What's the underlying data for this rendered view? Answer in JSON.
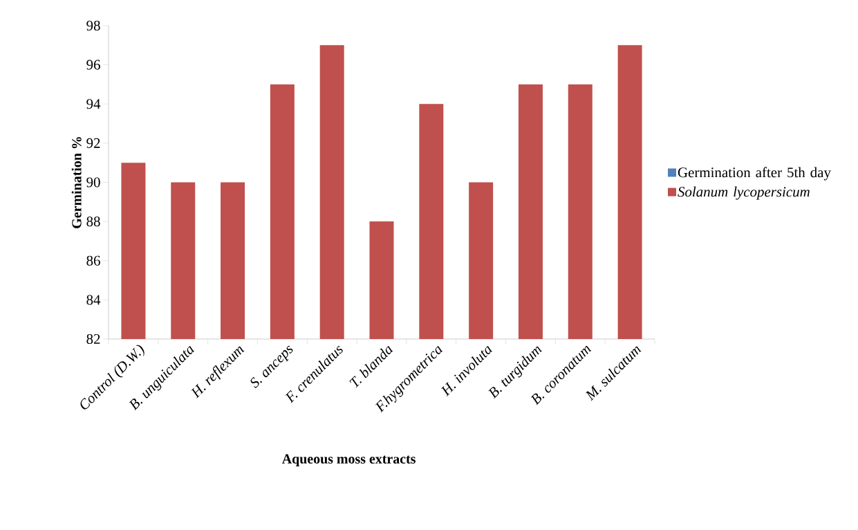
{
  "chart_data": {
    "type": "bar",
    "xlabel": "Aqueous moss extracts",
    "ylabel": "Germination %",
    "categories": [
      "Control (D.W.)",
      "B. unguiculata",
      "H. reflexum",
      "S. anceps",
      "F. crenulatus",
      "T. blanda",
      "F.hygrometrica",
      "H. involuta",
      "B. turgidum",
      "B. coronatum",
      "M. sulcatum"
    ],
    "series": [
      {
        "name": "Germination after 5th day",
        "color": "#4f81bd",
        "values": [
          null,
          null,
          null,
          null,
          null,
          null,
          null,
          null,
          null,
          null,
          null
        ]
      },
      {
        "name": "*Solanum lycopersicum*",
        "color": "#c0504d",
        "values": [
          91,
          90,
          90,
          95,
          97,
          88,
          94,
          90,
          95,
          95,
          97
        ]
      }
    ],
    "ylim": [
      82,
      98
    ],
    "yticks": [
      82,
      84,
      86,
      88,
      90,
      92,
      94,
      96,
      98
    ],
    "grid": false,
    "legend": "right"
  }
}
